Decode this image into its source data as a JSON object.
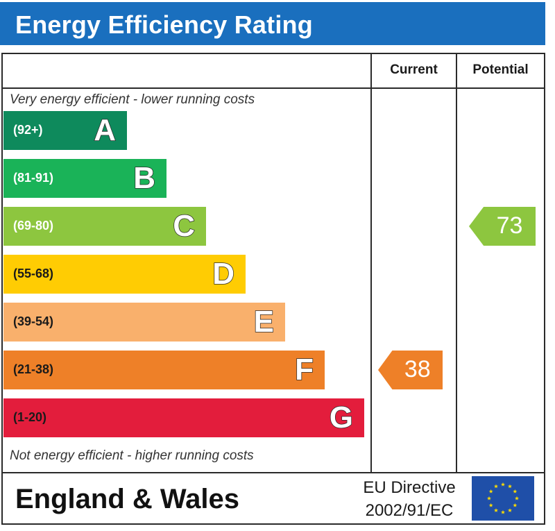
{
  "header": {
    "title": "Energy Efficiency Rating"
  },
  "columns": {
    "current": "Current",
    "potential": "Potential"
  },
  "notes": {
    "top": "Very energy efficient - lower running costs",
    "bottom": "Not energy efficient - higher running costs"
  },
  "colors": {
    "header_bg": "#1a6fbe",
    "eu_flag": "#1f4fa8",
    "eu_stars": "#ffdd00"
  },
  "chart_data": {
    "type": "bar",
    "bands": [
      {
        "letter": "A",
        "range": "(92+)",
        "color": "#0e8a5c"
      },
      {
        "letter": "B",
        "range": "(81-91)",
        "color": "#1ab358"
      },
      {
        "letter": "C",
        "range": "(69-80)",
        "color": "#8dc63f"
      },
      {
        "letter": "D",
        "range": "(55-68)",
        "color": "#ffcc03"
      },
      {
        "letter": "E",
        "range": "(39-54)",
        "color": "#f9b06c"
      },
      {
        "letter": "F",
        "range": "(21-38)",
        "color": "#ee8028"
      },
      {
        "letter": "G",
        "range": "(1-20)",
        "color": "#e31d3c"
      }
    ],
    "current": {
      "value": "38",
      "band": "F",
      "color": "#ee8028"
    },
    "potential": {
      "value": "73",
      "band": "C",
      "color": "#8dc63f"
    }
  },
  "footer": {
    "region": "England & Wales",
    "directive_line1": "EU Directive",
    "directive_line2": "2002/91/EC"
  }
}
